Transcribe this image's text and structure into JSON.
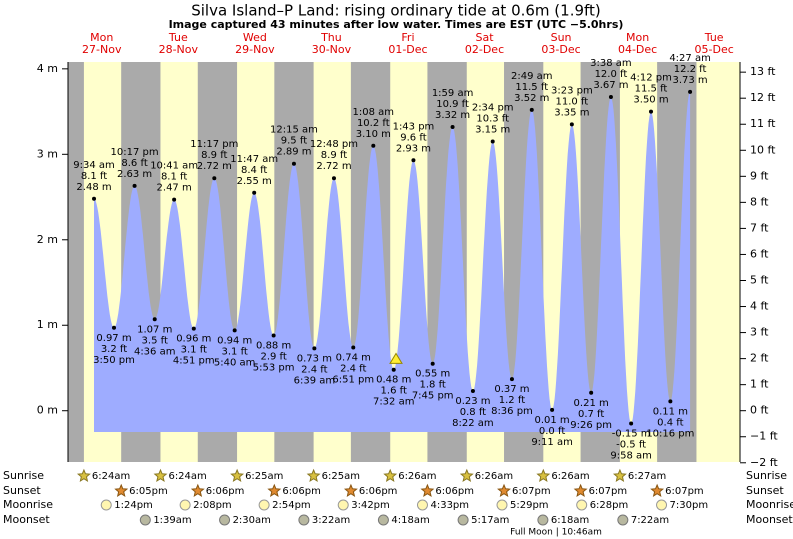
{
  "chart_data": {
    "type": "tide",
    "title": "Silva Island–P Land: rising  ordinary tide at 0.6m (1.9ft)",
    "subtitle": "Image captured 43 minutes after low water. Times are EST (UTC −5.0hrs)",
    "current": {
      "m": 0.6,
      "minutes_after_low": 43
    },
    "xlim": [
      1.41,
      212.1
    ],
    "ylim": [
      -0.6,
      4.08
    ],
    "yticks": [
      {
        "value": 0,
        "label": "0 m"
      },
      {
        "value": 1,
        "label": "1 m"
      },
      {
        "value": 2,
        "label": "2 m"
      },
      {
        "value": 3,
        "label": "3 m"
      },
      {
        "value": 4,
        "label": "4 m"
      }
    ],
    "y2lim": [
      -1.97,
      13.39
    ],
    "y2ticks": [
      {
        "value": -2,
        "label": "−2 ft"
      },
      {
        "value": -1,
        "label": "−1 ft"
      },
      {
        "value": 0,
        "label": "0 ft"
      },
      {
        "value": 1,
        "label": "1 ft"
      },
      {
        "value": 2,
        "label": "2 ft"
      },
      {
        "value": 3,
        "label": "3 ft"
      },
      {
        "value": 4,
        "label": "4 ft"
      },
      {
        "value": 5,
        "label": "5 ft"
      },
      {
        "value": 6,
        "label": "6 ft"
      },
      {
        "value": 7,
        "label": "7 ft"
      },
      {
        "value": 8,
        "label": "8 ft"
      },
      {
        "value": 9,
        "label": "9 ft"
      },
      {
        "value": 10,
        "label": "10 ft"
      },
      {
        "value": 11,
        "label": "11 ft"
      },
      {
        "value": 12,
        "label": "12 ft"
      },
      {
        "value": 13,
        "label": "13 ft"
      }
    ],
    "colors": {
      "water": "#9eacff",
      "day": "#ffffcc",
      "night": "#aaaaaa"
    },
    "row_labels": {
      "sunrise": "Sunrise",
      "sunset": "Sunset",
      "moonrise": "Moonrise",
      "moonset": "Moonset"
    },
    "full_moon": "Full Moon | 10:46am",
    "days": [
      {
        "name": "Mon",
        "date": "27-Nov",
        "sunrise": "6:24am",
        "sunset": "6:05pm",
        "moonrise": "1:24pm",
        "events": [
          {
            "time": "9:34 am",
            "m": 2.48,
            "m_label": "2.48 m",
            "ft": 8.1,
            "ft_label": "8.1 ft"
          },
          {
            "time": "3:50 pm",
            "m": 0.97,
            "m_label": "0.97 m",
            "ft": 3.2,
            "ft_label": "3.2 ft"
          },
          {
            "time": "10:17 pm",
            "m": 2.63,
            "m_label": "2.63 m",
            "ft": 8.6,
            "ft_label": "8.6 ft"
          }
        ]
      },
      {
        "name": "Tue",
        "date": "28-Nov",
        "sunrise": "6:24am",
        "sunset": "6:06pm",
        "moonrise": "2:08pm",
        "moonset": "1:39am",
        "events": [
          {
            "time": "4:36 am",
            "m": 1.07,
            "m_label": "1.07 m",
            "ft": 3.5,
            "ft_label": "3.5 ft"
          },
          {
            "time": "10:41 am",
            "m": 2.47,
            "m_label": "2.47 m",
            "ft": 8.1,
            "ft_label": "8.1 ft"
          },
          {
            "time": "4:51 pm",
            "m": 0.96,
            "m_label": "0.96 m",
            "ft": 3.1,
            "ft_label": "3.1 ft"
          },
          {
            "time": "11:17 pm",
            "m": 2.72,
            "m_label": "2.72 m",
            "ft": 8.9,
            "ft_label": "8.9 ft"
          }
        ]
      },
      {
        "name": "Wed",
        "date": "29-Nov",
        "sunrise": "6:25am",
        "sunset": "6:06pm",
        "moonrise": "2:54pm",
        "moonset": "2:30am",
        "events": [
          {
            "time": "5:40 am",
            "m": 0.94,
            "m_label": "0.94 m",
            "ft": 3.1,
            "ft_label": "3.1 ft"
          },
          {
            "time": "11:47 am",
            "m": 2.55,
            "m_label": "2.55 m",
            "ft": 8.4,
            "ft_label": "8.4 ft"
          },
          {
            "time": "5:53 pm",
            "m": 0.88,
            "m_label": "0.88 m",
            "ft": 2.9,
            "ft_label": "2.9 ft"
          }
        ]
      },
      {
        "name": "Thu",
        "date": "30-Nov",
        "sunrise": "6:25am",
        "sunset": "6:06pm",
        "moonrise": "3:42pm",
        "moonset": "3:22am",
        "events": [
          {
            "time": "12:15 am",
            "m": 2.89,
            "m_label": "2.89 m",
            "ft": 9.5,
            "ft_label": "9.5 ft"
          },
          {
            "time": "6:39 am",
            "m": 0.73,
            "m_label": "0.73 m",
            "ft": 2.4,
            "ft_label": "2.4 ft"
          },
          {
            "time": "12:48 pm",
            "m": 2.72,
            "m_label": "2.72 m",
            "ft": 8.9,
            "ft_label": "8.9 ft"
          },
          {
            "time": "6:51 pm",
            "m": 0.74,
            "m_label": "0.74 m",
            "ft": 2.4,
            "ft_label": "2.4 ft"
          }
        ]
      },
      {
        "name": "Fri",
        "date": "01-Dec",
        "sunrise": "6:26am",
        "sunset": "6:06pm",
        "moonrise": "4:33pm",
        "moonset": "4:18am",
        "events": [
          {
            "time": "1:08 am",
            "m": 3.1,
            "m_label": "3.10 m",
            "ft": 10.2,
            "ft_label": "10.2 ft"
          },
          {
            "time": "7:32 am",
            "m": 0.48,
            "m_label": "0.48 m",
            "ft": 1.6,
            "ft_label": "1.6 ft"
          },
          {
            "time": "1:43 pm",
            "m": 2.93,
            "m_label": "2.93 m",
            "ft": 9.6,
            "ft_label": "9.6 ft"
          },
          {
            "time": "7:45 pm",
            "m": 0.55,
            "m_label": "0.55 m",
            "ft": 1.8,
            "ft_label": "1.8 ft"
          }
        ]
      },
      {
        "name": "Sat",
        "date": "02-Dec",
        "sunrise": "6:26am",
        "sunset": "6:07pm",
        "moonrise": "5:29pm",
        "moonset": "5:17am",
        "events": [
          {
            "time": "1:59 am",
            "m": 3.32,
            "m_label": "3.32 m",
            "ft": 10.9,
            "ft_label": "10.9 ft"
          },
          {
            "time": "8:22 am",
            "m": 0.23,
            "m_label": "0.23 m",
            "ft": 0.8,
            "ft_label": "0.8 ft"
          },
          {
            "time": "2:34 pm",
            "m": 3.15,
            "m_label": "3.15 m",
            "ft": 10.3,
            "ft_label": "10.3 ft"
          },
          {
            "time": "8:36 pm",
            "m": 0.37,
            "m_label": "0.37 m",
            "ft": 1.2,
            "ft_label": "1.2 ft"
          }
        ]
      },
      {
        "name": "Sun",
        "date": "03-Dec",
        "sunrise": "6:26am",
        "sunset": "6:07pm",
        "moonrise": "6:28pm",
        "moonset": "6:18am",
        "events": [
          {
            "time": "2:49 am",
            "m": 3.52,
            "m_label": "3.52 m",
            "ft": 11.5,
            "ft_label": "11.5 ft"
          },
          {
            "time": "9:11 am",
            "m": 0.01,
            "m_label": "0.01 m",
            "ft": 0.0,
            "ft_label": "0.0 ft"
          },
          {
            "time": "3:23 pm",
            "m": 3.35,
            "m_label": "3.35 m",
            "ft": 11.0,
            "ft_label": "11.0 ft"
          },
          {
            "time": "9:26 pm",
            "m": 0.21,
            "m_label": "0.21 m",
            "ft": 0.7,
            "ft_label": "0.7 ft"
          }
        ]
      },
      {
        "name": "Mon",
        "date": "04-Dec",
        "sunrise": "6:27am",
        "sunset": "6:07pm",
        "moonrise": "7:30pm",
        "moonset": "7:22am",
        "events": [
          {
            "time": "3:38 am",
            "m": 3.67,
            "m_label": "3.67 m",
            "ft": 12.0,
            "ft_label": "12.0 ft"
          },
          {
            "time": "9:58 am",
            "m": -0.15,
            "m_label": "-0.15 m",
            "ft": -0.5,
            "ft_label": "-0.5 ft"
          },
          {
            "time": "4:12 pm",
            "m": 3.5,
            "m_label": "3.50 m",
            "ft": 11.5,
            "ft_label": "11.5 ft"
          },
          {
            "time": "10:16 pm",
            "m": 0.11,
            "m_label": "0.11 m",
            "ft": 0.4,
            "ft_label": "0.4 ft"
          }
        ]
      },
      {
        "name": "Tue",
        "date": "05-Dec",
        "events": [
          {
            "time": "4:27 am",
            "m": 3.73,
            "m_label": "3.73 m",
            "ft": 12.2,
            "ft_label": "12.2 ft"
          }
        ]
      }
    ]
  }
}
